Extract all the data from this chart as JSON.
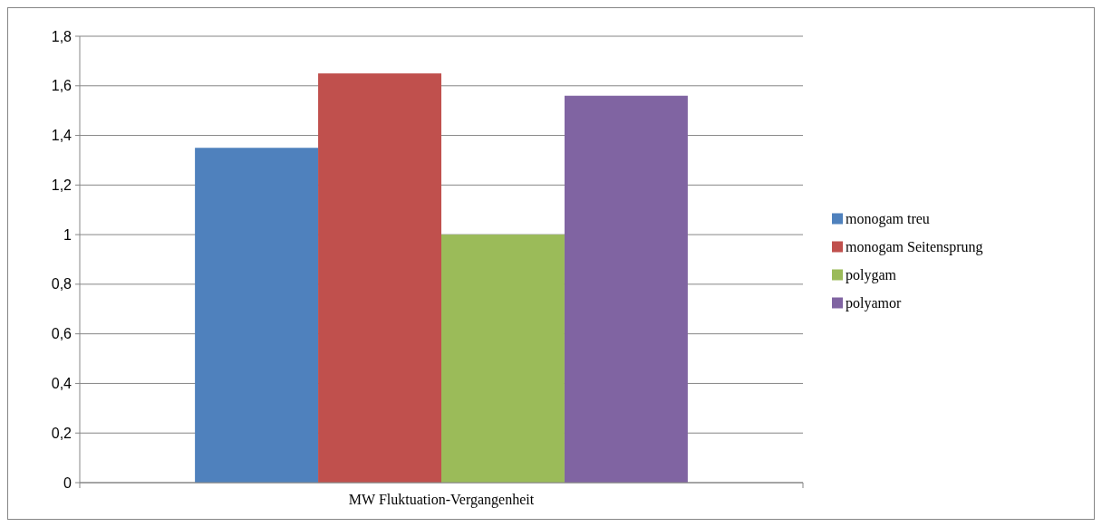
{
  "chart_data": {
    "type": "bar",
    "categories": [
      "MW Fluktuation-Vergangenheit"
    ],
    "series": [
      {
        "name": "monogam treu",
        "color": "#4f81bd",
        "values": [
          1.35
        ]
      },
      {
        "name": "monogam Seitensprung",
        "color": "#c0504d",
        "values": [
          1.65
        ]
      },
      {
        "name": "polygam",
        "color": "#9bbb59",
        "values": [
          1.0
        ]
      },
      {
        "name": "polyamor",
        "color": "#8064a2",
        "values": [
          1.56
        ]
      }
    ],
    "ylim": [
      0,
      1.8
    ],
    "yticks": [
      {
        "value": 0,
        "label": "0"
      },
      {
        "value": 0.2,
        "label": "0,2"
      },
      {
        "value": 0.4,
        "label": "0,4"
      },
      {
        "value": 0.6,
        "label": "0,6"
      },
      {
        "value": 0.8,
        "label": "0,8"
      },
      {
        "value": 1,
        "label": "1"
      },
      {
        "value": 1.2,
        "label": "1,2"
      },
      {
        "value": 1.4,
        "label": "1,4"
      },
      {
        "value": 1.6,
        "label": "1,6"
      },
      {
        "value": 1.8,
        "label": "1,8"
      }
    ],
    "grid": "y",
    "legend": "right"
  }
}
